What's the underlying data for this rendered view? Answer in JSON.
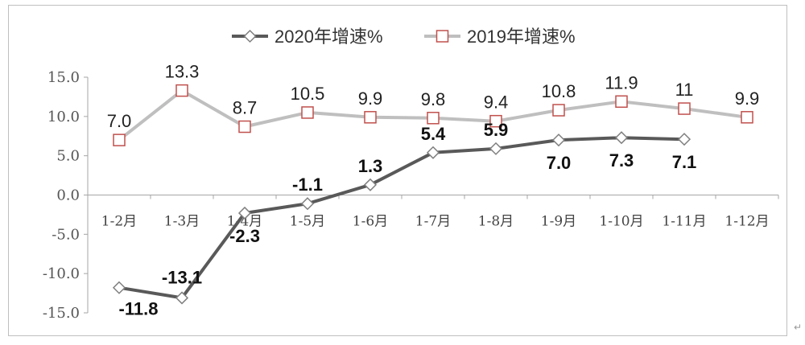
{
  "chart_data": {
    "type": "line",
    "categories": [
      "1-2月",
      "1-3月",
      "1-4月",
      "1-5月",
      "1-6月",
      "1-7月",
      "1-8月",
      "1-9月",
      "1-10月",
      "1-11月",
      "1-12月"
    ],
    "ylim": [
      -15,
      15
    ],
    "yticks": [
      "15.0",
      "10.0",
      "5.0",
      "0.0",
      "-5.0",
      "-10.0",
      "-15.0"
    ],
    "ytick_values": [
      15,
      10,
      5,
      0,
      -5,
      -10,
      -15
    ],
    "legend_position": "top-center",
    "grid": false,
    "series": [
      {
        "name": "2020年增速%",
        "marker": "diamond",
        "color": "#595959",
        "values": [
          -11.8,
          -13.1,
          -2.3,
          -1.1,
          1.3,
          5.4,
          5.9,
          7.0,
          7.3,
          7.1,
          null
        ],
        "labels": [
          "-11.8",
          "-13.1",
          "-2.3",
          "-1.1",
          "1.3",
          "5.4",
          "5.9",
          "7.0",
          "7.3",
          "7.1",
          null
        ]
      },
      {
        "name": "2019年增速%",
        "marker": "square",
        "color": "#bfbfbf",
        "marker_edge": "#c0504d",
        "values": [
          7.0,
          13.3,
          8.7,
          10.5,
          9.9,
          9.8,
          9.4,
          10.8,
          11.9,
          11,
          9.9
        ],
        "labels": [
          "7.0",
          "13.3",
          "8.7",
          "10.5",
          "9.9",
          "9.8",
          "9.4",
          "10.8",
          "11.9",
          "11",
          "9.9"
        ]
      }
    ]
  },
  "corner_mark": "↵"
}
